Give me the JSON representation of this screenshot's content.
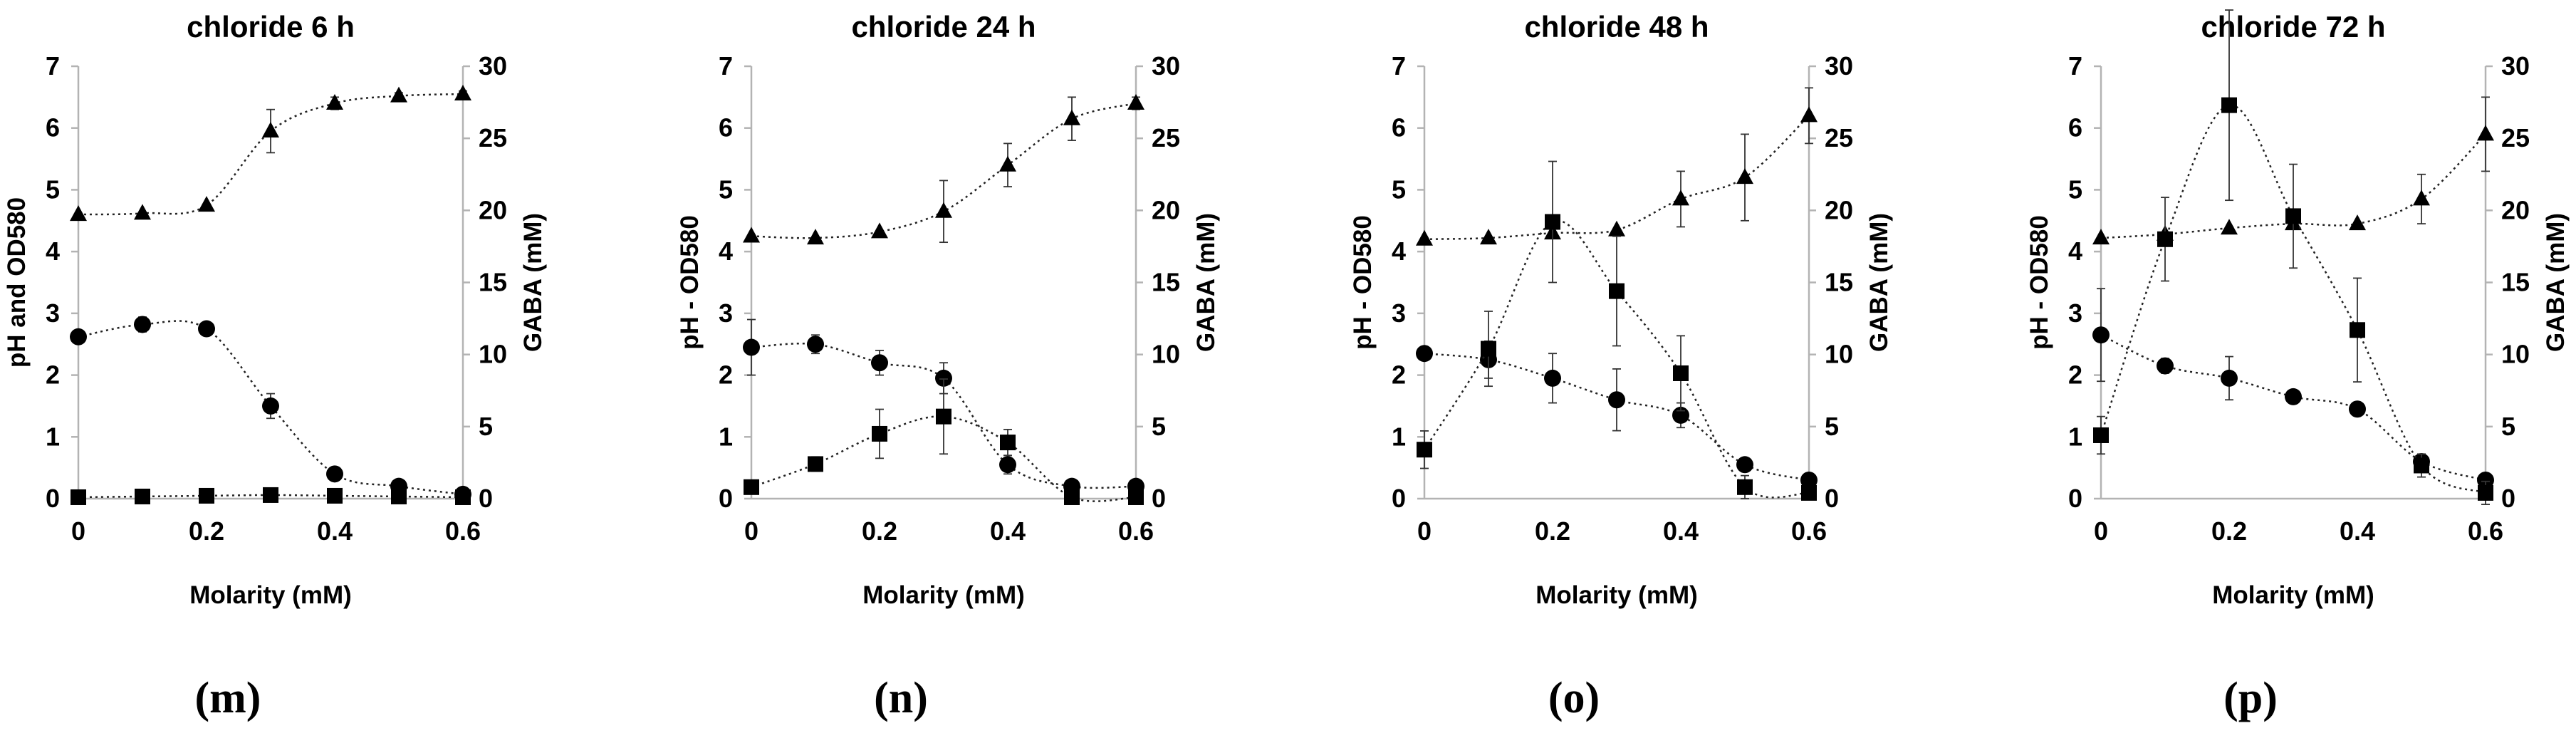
{
  "chart_data": [
    {
      "panel_label": "(m)",
      "type": "line",
      "title": "chloride 6 h",
      "xlabel": "Molarity (mM)",
      "ylabel_left": "pH and OD580",
      "ylabel_right": "GABA (mM)",
      "x": [
        0,
        0.1,
        0.2,
        0.3,
        0.4,
        0.5,
        0.6
      ],
      "x_ticks": [
        "0",
        "0.2",
        "0.4",
        "0.6"
      ],
      "xlim": [
        0,
        0.6
      ],
      "ylim_left": [
        0,
        7
      ],
      "y_ticks_left": [
        "0",
        "1",
        "2",
        "3",
        "4",
        "5",
        "6",
        "7"
      ],
      "ylim_right": [
        0,
        30
      ],
      "y_ticks_right": [
        "0",
        "5",
        "10",
        "15",
        "20",
        "25",
        "30"
      ],
      "series": [
        {
          "name": "pH",
          "marker": "triangle",
          "axis": "left",
          "values": [
            4.6,
            4.62,
            4.75,
            5.95,
            6.4,
            6.52,
            6.55
          ],
          "errors": [
            0,
            0,
            0,
            0.35,
            0.1,
            0.05,
            0.05
          ]
        },
        {
          "name": "OD580",
          "marker": "circle",
          "axis": "left",
          "values": [
            2.62,
            2.82,
            2.75,
            1.5,
            0.4,
            0.2,
            0.07
          ],
          "errors": [
            0.1,
            0.12,
            0.08,
            0.2,
            0.05,
            0.05,
            0.03
          ]
        },
        {
          "name": "GABA",
          "marker": "square",
          "axis": "right",
          "values": [
            0.1,
            0.15,
            0.2,
            0.25,
            0.2,
            0.15,
            0.1
          ],
          "errors": [
            0,
            0,
            0,
            0,
            0,
            0,
            0
          ]
        }
      ]
    },
    {
      "panel_label": "(n)",
      "type": "line",
      "title": "chloride 24 h",
      "xlabel": "Molarity (mM)",
      "ylabel_left": "pH - OD580",
      "ylabel_right": "GABA (mM)",
      "x": [
        0,
        0.1,
        0.2,
        0.3,
        0.4,
        0.5,
        0.6
      ],
      "x_ticks": [
        "0",
        "0.2",
        "0.4",
        "0.6"
      ],
      "xlim": [
        0,
        0.6
      ],
      "ylim_left": [
        0,
        7
      ],
      "y_ticks_left": [
        "0",
        "1",
        "2",
        "3",
        "4",
        "5",
        "6",
        "7"
      ],
      "ylim_right": [
        0,
        30
      ],
      "y_ticks_right": [
        "0",
        "5",
        "10",
        "15",
        "20",
        "25",
        "30"
      ],
      "series": [
        {
          "name": "pH",
          "marker": "triangle",
          "axis": "left",
          "values": [
            4.25,
            4.22,
            4.32,
            4.65,
            5.4,
            6.15,
            6.4
          ],
          "errors": [
            0,
            0,
            0,
            0.5,
            0.35,
            0.35,
            0.1
          ]
        },
        {
          "name": "OD580",
          "marker": "circle",
          "axis": "left",
          "values": [
            2.45,
            2.5,
            2.2,
            1.95,
            0.55,
            0.2,
            0.2
          ],
          "errors": [
            0.45,
            0.15,
            0.2,
            0.25,
            0.15,
            0.05,
            0.05
          ]
        },
        {
          "name": "GABA",
          "marker": "square",
          "axis": "right",
          "values": [
            0.8,
            2.4,
            4.5,
            5.7,
            3.9,
            0.1,
            0.1
          ],
          "errors": [
            0,
            0.5,
            1.7,
            2.6,
            0.9,
            0.3,
            0.1
          ]
        }
      ]
    },
    {
      "panel_label": "(o)",
      "type": "line",
      "title": "chloride 48 h",
      "xlabel": "Molarity (mM)",
      "ylabel_left": "pH - OD580",
      "ylabel_right": "GABA (mM)",
      "x": [
        0,
        0.1,
        0.2,
        0.3,
        0.4,
        0.5,
        0.6
      ],
      "x_ticks": [
        "0",
        "0.2",
        "0.4",
        "0.6"
      ],
      "xlim": [
        0,
        0.6
      ],
      "ylim_left": [
        0,
        7
      ],
      "y_ticks_left": [
        "0",
        "1",
        "2",
        "3",
        "4",
        "5",
        "6",
        "7"
      ],
      "ylim_right": [
        0,
        30
      ],
      "y_ticks_right": [
        "0",
        "5",
        "10",
        "15",
        "20",
        "25",
        "30"
      ],
      "series": [
        {
          "name": "pH",
          "marker": "triangle",
          "axis": "left",
          "values": [
            4.2,
            4.22,
            4.3,
            4.35,
            4.85,
            5.2,
            6.2
          ],
          "errors": [
            0,
            0,
            0,
            0,
            0.45,
            0.7,
            0.45
          ]
        },
        {
          "name": "OD580",
          "marker": "circle",
          "axis": "left",
          "values": [
            2.35,
            2.25,
            1.95,
            1.6,
            1.35,
            0.55,
            0.3
          ],
          "errors": [
            0.1,
            0.3,
            0.4,
            0.5,
            0.2,
            0.1,
            0.1
          ]
        },
        {
          "name": "GABA",
          "marker": "square",
          "axis": "right",
          "values": [
            3.4,
            10.4,
            19.2,
            14.4,
            8.7,
            0.8,
            0.4
          ],
          "errors": [
            1.3,
            2.6,
            4.2,
            3.8,
            2.6,
            0.8,
            0.4
          ]
        }
      ]
    },
    {
      "panel_label": "(p)",
      "type": "line",
      "title": "chloride 72 h",
      "xlabel": "Molarity (mM)",
      "ylabel_left": "pH - OD580",
      "ylabel_right": "GABA (mM)",
      "x": [
        0,
        0.1,
        0.2,
        0.3,
        0.4,
        0.5,
        0.6
      ],
      "x_ticks": [
        "0",
        "0.2",
        "0.4",
        "0.6"
      ],
      "xlim": [
        0,
        0.6
      ],
      "ylim_left": [
        0,
        7
      ],
      "y_ticks_left": [
        "0",
        "1",
        "2",
        "3",
        "4",
        "5",
        "6",
        "7"
      ],
      "ylim_right": [
        0,
        30
      ],
      "y_ticks_right": [
        "0",
        "5",
        "10",
        "15",
        "20",
        "25",
        "30"
      ],
      "series": [
        {
          "name": "pH",
          "marker": "triangle",
          "axis": "left",
          "values": [
            4.22,
            4.28,
            4.38,
            4.45,
            4.45,
            4.85,
            5.9
          ],
          "errors": [
            0,
            0,
            0,
            0,
            0,
            0.4,
            0.6
          ]
        },
        {
          "name": "OD580",
          "marker": "circle",
          "axis": "left",
          "values": [
            2.65,
            2.15,
            1.95,
            1.65,
            1.45,
            0.6,
            0.3
          ],
          "errors": [
            0.75,
            0.12,
            0.35,
            0.1,
            0.1,
            0.1,
            0.1
          ]
        },
        {
          "name": "GABA",
          "marker": "square",
          "axis": "right",
          "values": [
            4.4,
            18.0,
            27.3,
            19.6,
            11.7,
            2.3,
            0.4
          ],
          "errors": [
            1.3,
            2.9,
            6.6,
            3.6,
            3.6,
            0.8,
            0.8
          ]
        }
      ]
    }
  ]
}
